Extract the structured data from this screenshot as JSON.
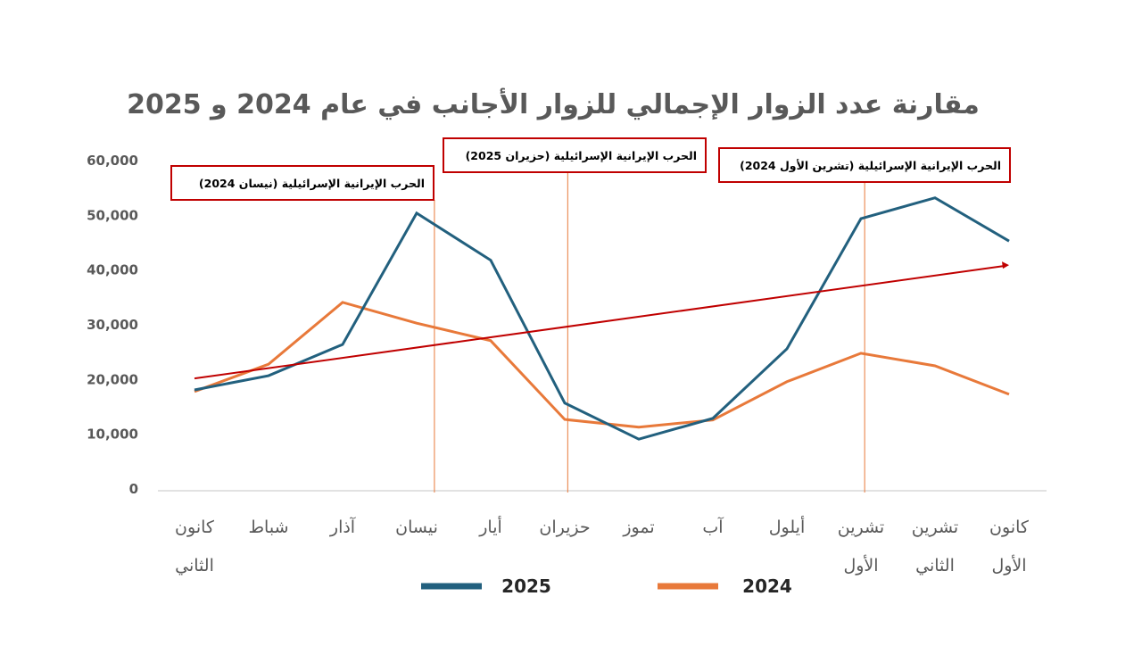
{
  "chart_data": {
    "type": "line",
    "title": "مقارنة عدد الزوار الإجمالي للزوار الأجانب  في عام 2024 و 2025",
    "xlabel": "",
    "ylabel": "",
    "categories": [
      [
        "كانون",
        "الثاني"
      ],
      [
        "شباط"
      ],
      [
        "آذار"
      ],
      [
        "نيسان"
      ],
      [
        "أيار"
      ],
      [
        "حزيران"
      ],
      [
        "تموز"
      ],
      [
        "آب"
      ],
      [
        "أيلول"
      ],
      [
        "تشرين",
        "الأول"
      ],
      [
        "تشرين",
        "الثاني"
      ],
      [
        "كانون",
        "الأول"
      ]
    ],
    "ylim": [
      0,
      60000
    ],
    "yticks": [
      "0",
      "10,000",
      "20,000",
      "30,000",
      "40,000",
      "50,000",
      "60,000"
    ],
    "grid": false,
    "legend_position": "bottom",
    "series": [
      {
        "name": "2025",
        "color": "#22607e",
        "values": [
          18100,
          20700,
          26400,
          50400,
          41800,
          15700,
          9100,
          12900,
          25600,
          49400,
          53200,
          45300
        ]
      },
      {
        "name": "2024",
        "color": "#e8793a",
        "values": [
          17800,
          22800,
          34100,
          30300,
          27100,
          12700,
          11300,
          12600,
          19600,
          24800,
          22500,
          17300
        ]
      }
    ],
    "trend_arrow": {
      "color": "#c00000",
      "start": 20200,
      "end": 40900
    },
    "annotations": [
      {
        "text": "الحرب الإيرانية الإسرائيلية  (نيسان 2024)",
        "x_index": 3.24
      },
      {
        "text": "الحرب الإيرانية الإسرائيلية (حزيران 2025)",
        "x_index": 5.04
      },
      {
        "text": "الحرب الإيرانية الإسرائيلية (تشرين الأول 2024)",
        "x_index": 9.05
      }
    ],
    "annotation_line_color": "#e8793a",
    "annotation_box_color": "#c00000"
  }
}
